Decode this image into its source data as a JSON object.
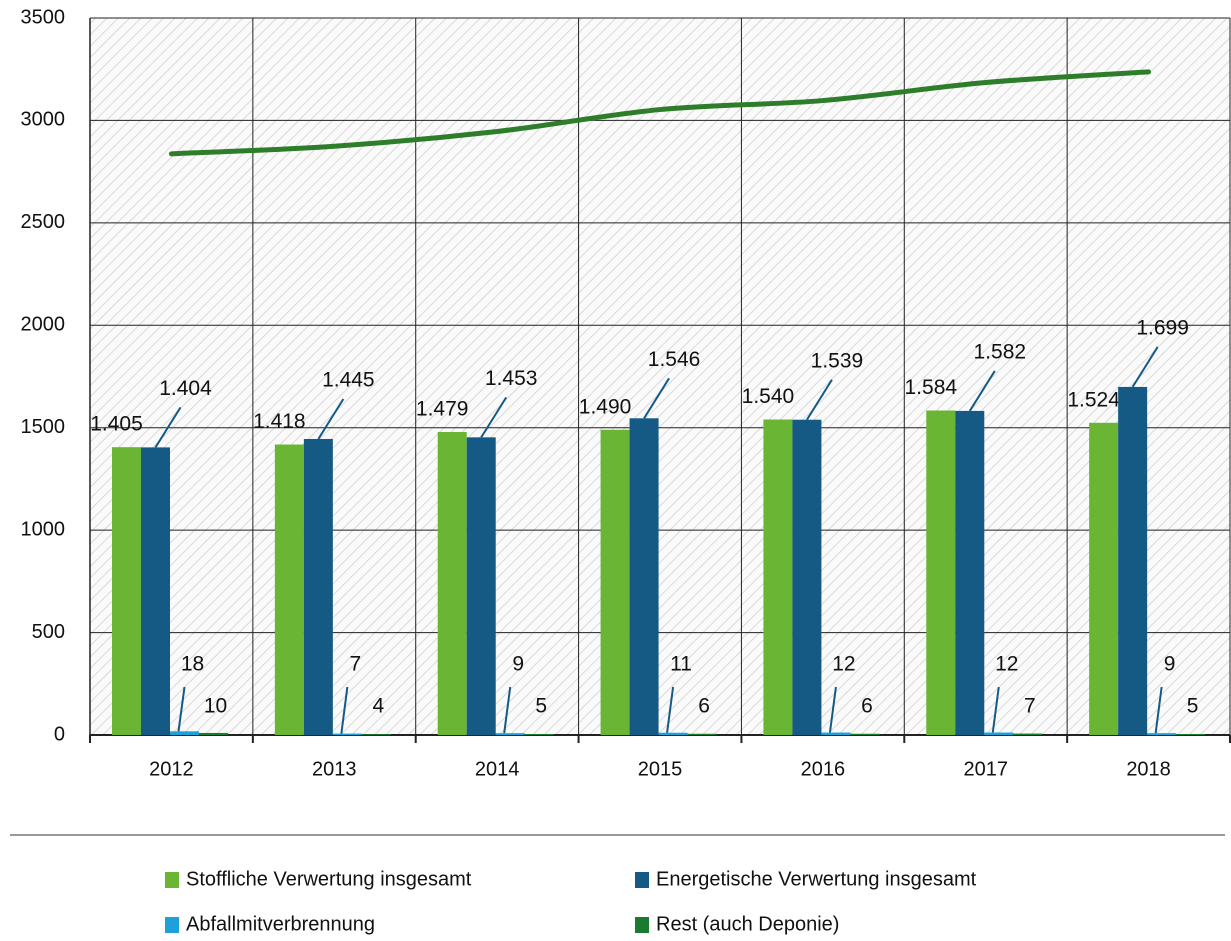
{
  "chart_data": {
    "type": "bar",
    "categories": [
      "2012",
      "2013",
      "2014",
      "2015",
      "2016",
      "2017",
      "2018"
    ],
    "series": [
      {
        "name": "Stoffliche Verwertung insgesamt",
        "color": "#6ab533",
        "values": [
          1405,
          1418,
          1479,
          1490,
          1540,
          1584,
          1524
        ],
        "value_labels": [
          "1.405",
          "1.418",
          "1.479",
          "1.490",
          "1.540",
          "1.584",
          "1.524"
        ]
      },
      {
        "name": "Energetische Verwertung insgesamt",
        "color": "#155a85",
        "values": [
          1404,
          1445,
          1453,
          1546,
          1539,
          1582,
          1699
        ],
        "value_labels": [
          "1.404",
          "1.445",
          "1.453",
          "1.546",
          "1.539",
          "1.582",
          "1.699"
        ]
      },
      {
        "name": "Abfallmitverbrennung",
        "color": "#1ea0d8",
        "values": [
          18,
          7,
          9,
          11,
          12,
          12,
          9
        ],
        "value_labels": [
          "18",
          "7",
          "9",
          "11",
          "12",
          "12",
          "9"
        ]
      },
      {
        "name": "Rest (auch Deponie)",
        "color": "#1a7a30",
        "values": [
          10,
          4,
          5,
          6,
          6,
          7,
          5
        ],
        "value_labels": [
          "10",
          "4",
          "5",
          "6",
          "6",
          "7",
          "5"
        ]
      },
      {
        "type": "line",
        "color": "#2e7d2a",
        "values": [
          2837,
          2874,
          2946,
          3053,
          3097,
          3185,
          3237
        ]
      }
    ],
    "ylim": [
      0,
      3500
    ],
    "yticks": [
      0,
      500,
      1000,
      1500,
      2000,
      2500,
      3000,
      3500
    ],
    "grid": true
  }
}
